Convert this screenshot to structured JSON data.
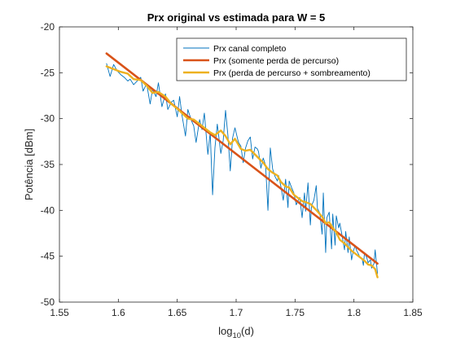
{
  "chart_data": {
    "type": "line",
    "title": "Prx original vs estimada para W = 5",
    "xlabel": {
      "base": "log",
      "sub": "10",
      "rest": "(d)"
    },
    "ylabel": "Potência [dBm]",
    "xlim": [
      1.55,
      1.85
    ],
    "ylim": [
      -50,
      -20
    ],
    "xticks": [
      "1.55",
      "1.6",
      "1.65",
      "1.7",
      "1.75",
      "1.8",
      "1.85"
    ],
    "yticks": [
      "-20",
      "-25",
      "-30",
      "-35",
      "-40",
      "-45",
      "-50"
    ],
    "grid": false,
    "legend_position": "top-right",
    "series": [
      {
        "name": "Prx canal completo",
        "color": "#0072BD",
        "x": [
          1.59,
          1.593,
          1.596,
          1.599,
          1.602,
          1.605,
          1.608,
          1.61,
          1.613,
          1.616,
          1.619,
          1.621,
          1.624,
          1.627,
          1.629,
          1.632,
          1.634,
          1.637,
          1.64,
          1.642,
          1.645,
          1.647,
          1.65,
          1.652,
          1.654,
          1.657,
          1.659,
          1.662,
          1.664,
          1.666,
          1.669,
          1.671,
          1.673,
          1.676,
          1.678,
          1.68,
          1.682,
          1.684,
          1.687,
          1.689,
          1.691,
          1.693,
          1.695,
          1.697,
          1.699,
          1.702,
          1.704,
          1.706,
          1.708,
          1.71,
          1.712,
          1.714,
          1.716,
          1.718,
          1.719,
          1.721,
          1.723,
          1.725,
          1.727,
          1.729,
          1.731,
          1.733,
          1.735,
          1.736,
          1.738,
          1.74,
          1.742,
          1.744,
          1.745,
          1.747,
          1.749,
          1.751,
          1.752,
          1.754,
          1.756,
          1.758,
          1.759,
          1.761,
          1.763,
          1.764,
          1.766,
          1.768,
          1.769,
          1.771,
          1.773,
          1.774,
          1.776,
          1.777,
          1.779,
          1.781,
          1.782,
          1.784,
          1.785,
          1.787,
          1.788,
          1.79,
          1.792,
          1.793,
          1.795,
          1.796,
          1.798,
          1.799,
          1.801,
          1.802,
          1.804,
          1.805,
          1.807,
          1.808,
          1.809,
          1.811,
          1.812,
          1.814,
          1.815,
          1.817,
          1.818,
          1.82
        ],
        "y": [
          -24.0,
          -25.4,
          -24.1,
          -24.8,
          -25.2,
          -25.5,
          -25.9,
          -25.7,
          -26.3,
          -25.9,
          -25.5,
          -27.0,
          -26.2,
          -28.4,
          -26.8,
          -27.6,
          -26.1,
          -28.7,
          -27.3,
          -29.0,
          -28.2,
          -28.0,
          -29.8,
          -27.6,
          -29.6,
          -31.9,
          -29.0,
          -30.2,
          -30.8,
          -32.6,
          -30.1,
          -31.2,
          -29.4,
          -33.9,
          -31.5,
          -38.3,
          -33.2,
          -30.6,
          -33.8,
          -32.4,
          -29.1,
          -31.8,
          -35.7,
          -32.1,
          -31.0,
          -32.6,
          -33.0,
          -34.8,
          -33.2,
          -32.4,
          -32.0,
          -34.4,
          -33.1,
          -33.3,
          -33.6,
          -35.4,
          -34.3,
          -35.1,
          -40.0,
          -33.2,
          -35.5,
          -36.3,
          -36.8,
          -36.2,
          -37.4,
          -38.9,
          -36.6,
          -39.7,
          -36.8,
          -37.5,
          -38.1,
          -39.4,
          -39.1,
          -38.6,
          -40.8,
          -38.1,
          -40.1,
          -37.0,
          -41.6,
          -39.5,
          -38.9,
          -37.3,
          -39.8,
          -40.3,
          -42.6,
          -38.1,
          -44.6,
          -40.8,
          -40.2,
          -44.2,
          -40.4,
          -43.8,
          -40.6,
          -41.9,
          -41.4,
          -42.8,
          -44.3,
          -42.3,
          -44.6,
          -42.9,
          -45.4,
          -44.7,
          -43.8,
          -44.3,
          -44.8,
          -45.1,
          -45.3,
          -46.0,
          -44.6,
          -45.2,
          -45.7,
          -45.4,
          -46.3,
          -45.8,
          -44.3,
          -46.9
        ]
      },
      {
        "name": "Prx (somente perda de percurso)",
        "color": "#D95319",
        "x": [
          1.59,
          1.82
        ],
        "y": [
          -22.9,
          -45.8
        ]
      },
      {
        "name": "Prx (perda de percurso + sombreamento)",
        "color": "#EDB120",
        "x": [
          1.59,
          1.596,
          1.602,
          1.608,
          1.613,
          1.619,
          1.624,
          1.629,
          1.634,
          1.64,
          1.645,
          1.65,
          1.654,
          1.659,
          1.664,
          1.669,
          1.673,
          1.678,
          1.682,
          1.687,
          1.691,
          1.695,
          1.699,
          1.704,
          1.708,
          1.712,
          1.716,
          1.719,
          1.723,
          1.727,
          1.731,
          1.735,
          1.738,
          1.742,
          1.745,
          1.749,
          1.752,
          1.756,
          1.759,
          1.763,
          1.766,
          1.769,
          1.773,
          1.776,
          1.779,
          1.782,
          1.785,
          1.788,
          1.792,
          1.795,
          1.798,
          1.801,
          1.804,
          1.807,
          1.809,
          1.812,
          1.815,
          1.818,
          1.82
        ],
        "y": [
          -24.3,
          -24.6,
          -24.9,
          -25.1,
          -25.7,
          -25.8,
          -26.4,
          -27.2,
          -27.1,
          -27.6,
          -28.4,
          -28.9,
          -29.4,
          -30.0,
          -30.1,
          -30.6,
          -31.0,
          -31.5,
          -31.8,
          -31.3,
          -31.9,
          -32.8,
          -32.2,
          -33.3,
          -33.5,
          -33.4,
          -33.9,
          -34.3,
          -34.8,
          -35.5,
          -35.9,
          -36.2,
          -36.9,
          -37.4,
          -37.5,
          -38.3,
          -38.6,
          -39.0,
          -39.1,
          -39.3,
          -39.7,
          -40.1,
          -40.7,
          -41.4,
          -41.3,
          -41.9,
          -42.4,
          -43.2,
          -43.6,
          -44.0,
          -44.4,
          -44.7,
          -45.0,
          -45.3,
          -45.5,
          -45.9,
          -46.0,
          -46.4,
          -47.3
        ]
      }
    ]
  }
}
